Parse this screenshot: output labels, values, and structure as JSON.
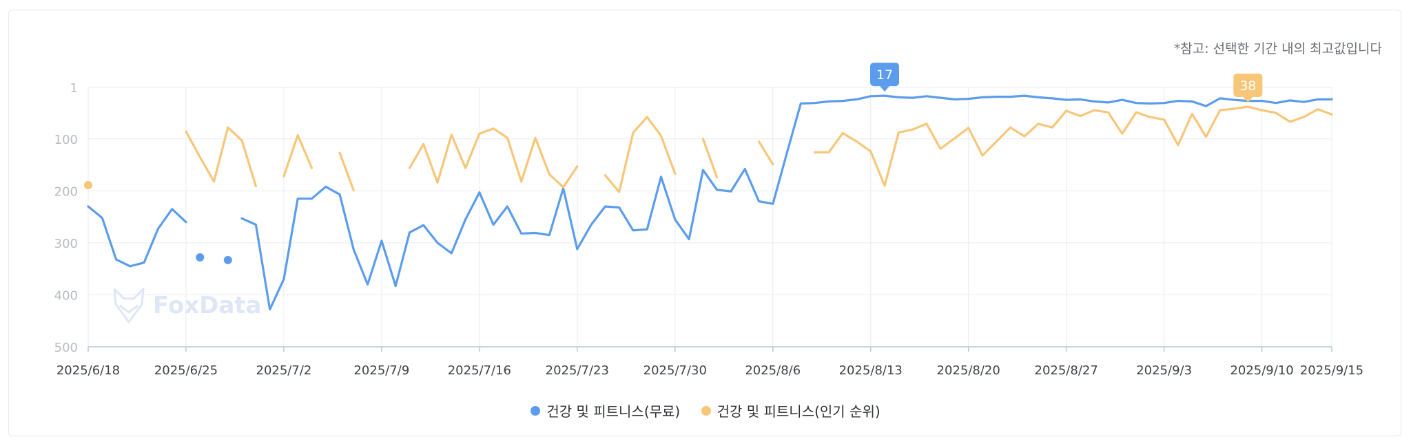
{
  "note": "*참고: 선택한 기간 내의 최고값입니다",
  "watermark": "FoxData",
  "colors": {
    "free": "#5b9ced",
    "popular": "#f7c679",
    "grid": "#e8ebef",
    "axis": "#b8c7de",
    "tick": "#b7bcc3",
    "xtick": "#3f4348"
  },
  "legend": [
    {
      "name": "건강 및 피트니스(무료)",
      "color": "#5b9ced"
    },
    {
      "name": "건강 및 피트니스(인기 순위)",
      "color": "#f7c679"
    }
  ],
  "chart_data": {
    "type": "line",
    "title": "",
    "xlabel": "",
    "ylabel": "",
    "y_reversed": true,
    "ylim": [
      1,
      500
    ],
    "y_ticks": [
      1,
      100,
      200,
      300,
      400,
      500
    ],
    "x_range": [
      "2025/6/18",
      "2025/9/15"
    ],
    "x_ticks": [
      "2025/6/18",
      "2025/6/25",
      "2025/7/2",
      "2025/7/9",
      "2025/7/16",
      "2025/7/23",
      "2025/7/30",
      "2025/8/6",
      "2025/8/13",
      "2025/8/20",
      "2025/8/27",
      "2025/9/3",
      "2025/9/10",
      "2025/9/15"
    ],
    "grid": true,
    "series": [
      {
        "name": "건강 및 피트니스(무료)",
        "color": "#5b9ced",
        "segments": [
          [
            [
              "2025/6/18",
              230
            ],
            [
              "2025/6/19",
              252
            ],
            [
              "2025/6/20",
              332
            ],
            [
              "2025/6/21",
              345
            ],
            [
              "2025/6/22",
              338
            ],
            [
              "2025/6/23",
              273
            ],
            [
              "2025/6/24",
              235
            ],
            [
              "2025/6/25",
              260
            ]
          ],
          [
            [
              "2025/6/26",
              328
            ]
          ],
          [
            [
              "2025/6/28",
              333
            ]
          ],
          [
            [
              "2025/6/29",
              253
            ],
            [
              "2025/6/30",
              265
            ],
            [
              "2025/7/1",
              428
            ],
            [
              "2025/7/2",
              370
            ],
            [
              "2025/7/3",
              215
            ],
            [
              "2025/7/4",
              215
            ],
            [
              "2025/7/5",
              192
            ],
            [
              "2025/7/6",
              207
            ],
            [
              "2025/7/7",
              313
            ],
            [
              "2025/7/8",
              380
            ],
            [
              "2025/7/9",
              296
            ],
            [
              "2025/7/10",
              383
            ],
            [
              "2025/7/11",
              280
            ],
            [
              "2025/7/12",
              266
            ],
            [
              "2025/7/13",
              300
            ],
            [
              "2025/7/14",
              320
            ],
            [
              "2025/7/15",
              255
            ],
            [
              "2025/7/16",
              203
            ],
            [
              "2025/7/17",
              265
            ],
            [
              "2025/7/18",
              230
            ],
            [
              "2025/7/19",
              282
            ],
            [
              "2025/7/20",
              281
            ],
            [
              "2025/7/21",
              285
            ],
            [
              "2025/7/22",
              195
            ],
            [
              "2025/7/23",
              312
            ],
            [
              "2025/7/24",
              265
            ],
            [
              "2025/7/25",
              230
            ],
            [
              "2025/7/26",
              232
            ],
            [
              "2025/7/27",
              276
            ],
            [
              "2025/7/28",
              274
            ],
            [
              "2025/7/29",
              173
            ],
            [
              "2025/7/30",
              255
            ],
            [
              "2025/7/31",
              293
            ],
            [
              "2025/8/1",
              160
            ],
            [
              "2025/8/2",
              198
            ],
            [
              "2025/8/3",
              201
            ],
            [
              "2025/8/4",
              158
            ],
            [
              "2025/8/5",
              220
            ],
            [
              "2025/8/6",
              225
            ],
            [
              "2025/8/7",
              128
            ],
            [
              "2025/8/8",
              32
            ],
            [
              "2025/8/9",
              31
            ],
            [
              "2025/8/10",
              28
            ],
            [
              "2025/8/11",
              27
            ],
            [
              "2025/8/12",
              24
            ],
            [
              "2025/8/13",
              18
            ],
            [
              "2025/8/14",
              17
            ],
            [
              "2025/8/15",
              20
            ],
            [
              "2025/8/16",
              21
            ],
            [
              "2025/8/17",
              18
            ],
            [
              "2025/8/18",
              21
            ],
            [
              "2025/8/19",
              24
            ],
            [
              "2025/8/20",
              23
            ],
            [
              "2025/8/21",
              20
            ],
            [
              "2025/8/22",
              19
            ],
            [
              "2025/8/23",
              19
            ],
            [
              "2025/8/24",
              17
            ],
            [
              "2025/8/25",
              20
            ],
            [
              "2025/8/26",
              22
            ],
            [
              "2025/8/27",
              25
            ],
            [
              "2025/8/28",
              24
            ],
            [
              "2025/8/29",
              28
            ],
            [
              "2025/8/30",
              30
            ],
            [
              "2025/8/31",
              25
            ],
            [
              "2025/9/1",
              31
            ],
            [
              "2025/9/2",
              32
            ],
            [
              "2025/9/3",
              31
            ],
            [
              "2025/9/4",
              27
            ],
            [
              "2025/9/5",
              28
            ],
            [
              "2025/9/6",
              37
            ],
            [
              "2025/9/7",
              22
            ],
            [
              "2025/9/8",
              25
            ],
            [
              "2025/9/9",
              27
            ],
            [
              "2025/9/10",
              27
            ],
            [
              "2025/9/11",
              31
            ],
            [
              "2025/9/12",
              26
            ],
            [
              "2025/9/13",
              29
            ],
            [
              "2025/9/14",
              24
            ],
            [
              "2025/9/15",
              24
            ]
          ]
        ]
      },
      {
        "name": "건강 및 피트니스(인기 순위)",
        "color": "#f7c679",
        "segments": [
          [
            [
              "2025/6/18",
              189
            ]
          ],
          [
            [
              "2025/6/25",
              86
            ],
            [
              "2025/6/26",
              135
            ],
            [
              "2025/6/27",
              182
            ],
            [
              "2025/6/28",
              78
            ],
            [
              "2025/6/29",
              103
            ],
            [
              "2025/6/30",
              191
            ]
          ],
          [
            [
              "2025/7/2",
              172
            ],
            [
              "2025/7/3",
              93
            ],
            [
              "2025/7/4",
              156
            ]
          ],
          [
            [
              "2025/7/6",
              127
            ],
            [
              "2025/7/7",
              199
            ]
          ],
          [
            [
              "2025/7/11",
              156
            ],
            [
              "2025/7/12",
              110
            ],
            [
              "2025/7/13",
              184
            ],
            [
              "2025/7/14",
              92
            ],
            [
              "2025/7/15",
              156
            ],
            [
              "2025/7/16",
              90
            ],
            [
              "2025/7/17",
              80
            ],
            [
              "2025/7/18",
              98
            ],
            [
              "2025/7/19",
              182
            ],
            [
              "2025/7/20",
              98
            ],
            [
              "2025/7/21",
              168
            ],
            [
              "2025/7/22",
              193
            ],
            [
              "2025/7/23",
              153
            ]
          ],
          [
            [
              "2025/7/25",
              170
            ],
            [
              "2025/7/26",
              202
            ],
            [
              "2025/7/27",
              88
            ],
            [
              "2025/7/28",
              58
            ],
            [
              "2025/7/29",
              94
            ],
            [
              "2025/7/30",
              167
            ]
          ],
          [
            [
              "2025/8/1",
              100
            ],
            [
              "2025/8/2",
              174
            ]
          ],
          [
            [
              "2025/8/5",
              105
            ],
            [
              "2025/8/6",
              149
            ]
          ],
          [
            [
              "2025/8/9",
              126
            ],
            [
              "2025/8/10",
              126
            ],
            [
              "2025/8/11",
              89
            ],
            [
              "2025/8/12",
              105
            ],
            [
              "2025/8/13",
              124
            ],
            [
              "2025/8/14",
              190
            ],
            [
              "2025/8/15",
              88
            ],
            [
              "2025/8/16",
              82
            ],
            [
              "2025/8/17",
              71
            ],
            [
              "2025/8/18",
              119
            ],
            [
              "2025/8/19",
              99
            ],
            [
              "2025/8/20",
              79
            ],
            [
              "2025/8/21",
              132
            ],
            [
              "2025/8/22",
              105
            ],
            [
              "2025/8/23",
              78
            ],
            [
              "2025/8/24",
              95
            ],
            [
              "2025/8/25",
              71
            ],
            [
              "2025/8/26",
              78
            ],
            [
              "2025/8/27",
              46
            ],
            [
              "2025/8/28",
              56
            ],
            [
              "2025/8/29",
              45
            ],
            [
              "2025/8/30",
              49
            ],
            [
              "2025/8/31",
              90
            ],
            [
              "2025/9/1",
              49
            ],
            [
              "2025/9/2",
              58
            ],
            [
              "2025/9/3",
              63
            ],
            [
              "2025/9/4",
              112
            ],
            [
              "2025/9/5",
              52
            ],
            [
              "2025/9/6",
              96
            ],
            [
              "2025/9/7",
              45
            ],
            [
              "2025/9/8",
              42
            ],
            [
              "2025/9/9",
              38
            ],
            [
              "2025/9/10",
              45
            ],
            [
              "2025/9/11",
              50
            ],
            [
              "2025/9/12",
              67
            ],
            [
              "2025/9/13",
              58
            ],
            [
              "2025/9/14",
              43
            ],
            [
              "2025/9/15",
              53
            ]
          ]
        ]
      }
    ],
    "annotations": [
      {
        "series": 0,
        "x": "2025/8/14",
        "label": "17",
        "color": "#5b9ced"
      },
      {
        "series": 1,
        "x": "2025/9/9",
        "label": "38",
        "color": "#f7c679"
      }
    ]
  }
}
